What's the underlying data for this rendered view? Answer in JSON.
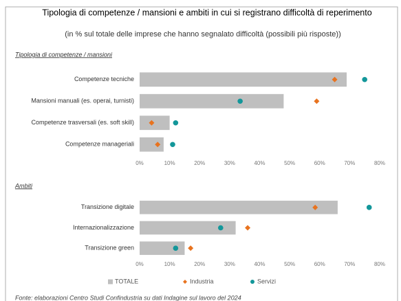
{
  "header": {
    "title": "Tipologia di competenze / mansioni e ambiti in cui si registrano difficoltà di reperimento",
    "subtitle": "(in % sul totale delle imprese che hanno segnalato difficoltà (possibili più risposte))"
  },
  "chart_data": [
    {
      "type": "bar",
      "orientation": "horizontal",
      "title": "Tipologia di competenze / mansioni",
      "categories": [
        "Competenze tecniche",
        "Mansioni manuali (es. operai, turnisti)",
        "Competenze trasversali (es. soft skill)",
        "Competenze manageriali"
      ],
      "series": [
        {
          "name": "TOTALE",
          "color": "#bfbfbf",
          "marker": "bar",
          "values": [
            69,
            48,
            10,
            8
          ]
        },
        {
          "name": "Industria",
          "color": "#e8731f",
          "marker": "diamond",
          "values": [
            65,
            59,
            4,
            6
          ]
        },
        {
          "name": "Servizi",
          "color": "#13979a",
          "marker": "circle",
          "values": [
            75,
            33.5,
            12,
            11
          ]
        }
      ],
      "xlim": [
        0,
        80
      ],
      "xticks": [
        {
          "value": 0,
          "label": "0%"
        },
        {
          "value": 10,
          "label": "10%"
        },
        {
          "value": 20,
          "label": "20%"
        },
        {
          "value": 30,
          "label": "30%"
        },
        {
          "value": 40,
          "label": "40%"
        },
        {
          "value": 50,
          "label": "50%"
        },
        {
          "value": 60,
          "label": "60%"
        },
        {
          "value": 70,
          "label": "70%"
        },
        {
          "value": 80,
          "label": "80%"
        }
      ]
    },
    {
      "type": "bar",
      "orientation": "horizontal",
      "title": "Ambiti",
      "categories": [
        "Transizione digitale",
        "Internazionalizzazione",
        "Transizione green"
      ],
      "series": [
        {
          "name": "TOTALE",
          "color": "#bfbfbf",
          "marker": "bar",
          "values": [
            66,
            32,
            15
          ]
        },
        {
          "name": "Industria",
          "color": "#e8731f",
          "marker": "diamond",
          "values": [
            58.5,
            36,
            17
          ]
        },
        {
          "name": "Servizi",
          "color": "#13979a",
          "marker": "circle",
          "values": [
            76.5,
            27,
            12
          ]
        }
      ],
      "xlim": [
        0,
        80
      ],
      "xticks": [
        {
          "value": 0,
          "label": "0%"
        },
        {
          "value": 10,
          "label": "10%"
        },
        {
          "value": 20,
          "label": "20%"
        },
        {
          "value": 30,
          "label": "30%"
        },
        {
          "value": 40,
          "label": "40%"
        },
        {
          "value": 50,
          "label": "50%"
        },
        {
          "value": 60,
          "label": "60%"
        },
        {
          "value": 70,
          "label": "70%"
        },
        {
          "value": 80,
          "label": "80%"
        }
      ]
    }
  ],
  "source": "Fonte: elaborazioni Centro Studi Confindustria su dati Indagine sul lavoro del 2024"
}
